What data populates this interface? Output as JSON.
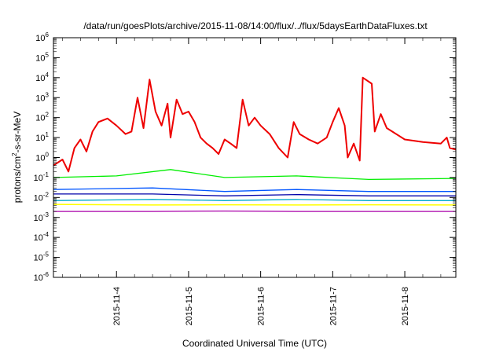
{
  "chart_data": {
    "type": "line",
    "title": "/data/run/goesPlots/archive/2015-11-08/14:00/flux/../flux/5daysEarthDataFluxes.txt",
    "xlabel": "Coordinated Universal Time (UTC)",
    "ylabel": {
      "pre": "protons/cm",
      "sup": "2",
      "post": "-s-sr-MeV"
    },
    "y_scale": "log",
    "ylim": [
      1e-06,
      1000000.0
    ],
    "y_ticks": [
      {
        "value": 1e-06,
        "base": "10",
        "exp": "-6"
      },
      {
        "value": 1e-05,
        "base": "10",
        "exp": "-5"
      },
      {
        "value": 0.0001,
        "base": "10",
        "exp": "-4"
      },
      {
        "value": 0.001,
        "base": "10",
        "exp": "-3"
      },
      {
        "value": 0.01,
        "base": "10",
        "exp": "-2"
      },
      {
        "value": 0.1,
        "base": "10",
        "exp": "-1"
      },
      {
        "value": 1,
        "base": "10",
        "exp": "0"
      },
      {
        "value": 10,
        "base": "10",
        "exp": "1"
      },
      {
        "value": 100,
        "base": "10",
        "exp": "2"
      },
      {
        "value": 1000,
        "base": "10",
        "exp": "3"
      },
      {
        "value": 10000,
        "base": "10",
        "exp": "4"
      },
      {
        "value": 100000,
        "base": "10",
        "exp": "5"
      },
      {
        "value": 1000000,
        "base": "10",
        "exp": "6"
      }
    ],
    "xlim": [
      "2015-11-03T03:00",
      "2015-11-08T17:00"
    ],
    "x_ticks": [
      "2015-11-4",
      "2015-11-5",
      "2015-11-6",
      "2015-11-7",
      "2015-11-8"
    ],
    "x_tick_dates": [
      "2015-11-04",
      "2015-11-05",
      "2015-11-06",
      "2015-11-07",
      "2015-11-08"
    ],
    "grid": false,
    "series": [
      {
        "color": "#ee0000",
        "width": 2,
        "points": [
          [
            "2015-11-03T03:00",
            0.4
          ],
          [
            "2015-11-03T06:00",
            0.8
          ],
          [
            "2015-11-03T08:00",
            0.2
          ],
          [
            "2015-11-03T10:00",
            3
          ],
          [
            "2015-11-03T12:00",
            8
          ],
          [
            "2015-11-03T14:00",
            2
          ],
          [
            "2015-11-03T16:00",
            20
          ],
          [
            "2015-11-03T18:00",
            60
          ],
          [
            "2015-11-03T21:00",
            90
          ],
          [
            "2015-11-04T00:00",
            40
          ],
          [
            "2015-11-04T03:00",
            15
          ],
          [
            "2015-11-04T05:00",
            20
          ],
          [
            "2015-11-04T07:00",
            1000
          ],
          [
            "2015-11-04T09:00",
            30
          ],
          [
            "2015-11-04T11:00",
            8000
          ],
          [
            "2015-11-04T13:00",
            200
          ],
          [
            "2015-11-04T15:00",
            40
          ],
          [
            "2015-11-04T17:00",
            500
          ],
          [
            "2015-11-04T18:00",
            10
          ],
          [
            "2015-11-04T20:00",
            800
          ],
          [
            "2015-11-04T22:00",
            150
          ],
          [
            "2015-11-05T00:00",
            200
          ],
          [
            "2015-11-05T02:00",
            60
          ],
          [
            "2015-11-05T04:00",
            10
          ],
          [
            "2015-11-05T06:00",
            5
          ],
          [
            "2015-11-05T08:00",
            3
          ],
          [
            "2015-11-05T10:00",
            1.5
          ],
          [
            "2015-11-05T12:00",
            8
          ],
          [
            "2015-11-05T14:00",
            5
          ],
          [
            "2015-11-05T16:00",
            3
          ],
          [
            "2015-11-05T18:00",
            800
          ],
          [
            "2015-11-05T20:00",
            40
          ],
          [
            "2015-11-05T22:00",
            100
          ],
          [
            "2015-11-06T00:00",
            40
          ],
          [
            "2015-11-06T03:00",
            15
          ],
          [
            "2015-11-06T06:00",
            3
          ],
          [
            "2015-11-06T09:00",
            1
          ],
          [
            "2015-11-06T11:00",
            60
          ],
          [
            "2015-11-06T13:00",
            15
          ],
          [
            "2015-11-06T16:00",
            8
          ],
          [
            "2015-11-06T19:00",
            5
          ],
          [
            "2015-11-06T22:00",
            10
          ],
          [
            "2015-11-07T00:00",
            60
          ],
          [
            "2015-11-07T02:00",
            300
          ],
          [
            "2015-11-07T04:00",
            40
          ],
          [
            "2015-11-07T05:00",
            1
          ],
          [
            "2015-11-07T07:00",
            5
          ],
          [
            "2015-11-07T09:00",
            0.7
          ],
          [
            "2015-11-07T10:00",
            10000
          ],
          [
            "2015-11-07T13:00",
            5000
          ],
          [
            "2015-11-07T14:00",
            20
          ],
          [
            "2015-11-07T16:00",
            150
          ],
          [
            "2015-11-07T18:00",
            30
          ],
          [
            "2015-11-08T00:00",
            8
          ],
          [
            "2015-11-08T06:00",
            6
          ],
          [
            "2015-11-08T12:00",
            5
          ],
          [
            "2015-11-08T14:00",
            10
          ],
          [
            "2015-11-08T15:00",
            3
          ],
          [
            "2015-11-08T17:00",
            2.5
          ]
        ]
      },
      {
        "color": "#00ee00",
        "width": 1.3,
        "points": [
          [
            "2015-11-03T03:00",
            0.1
          ],
          [
            "2015-11-04T00:00",
            0.12
          ],
          [
            "2015-11-04T18:00",
            0.25
          ],
          [
            "2015-11-05T12:00",
            0.1
          ],
          [
            "2015-11-06T12:00",
            0.12
          ],
          [
            "2015-11-07T12:00",
            0.08
          ],
          [
            "2015-11-08T17:00",
            0.09
          ]
        ]
      },
      {
        "color": "#0055ff",
        "width": 1.3,
        "points": [
          [
            "2015-11-03T03:00",
            0.025
          ],
          [
            "2015-11-04T12:00",
            0.03
          ],
          [
            "2015-11-05T12:00",
            0.02
          ],
          [
            "2015-11-06T12:00",
            0.025
          ],
          [
            "2015-11-07T12:00",
            0.02
          ],
          [
            "2015-11-08T17:00",
            0.02
          ]
        ]
      },
      {
        "color": "#0000aa",
        "width": 1.3,
        "points": [
          [
            "2015-11-03T03:00",
            0.015
          ],
          [
            "2015-11-04T12:00",
            0.015
          ],
          [
            "2015-11-05T12:00",
            0.012
          ],
          [
            "2015-11-06T12:00",
            0.014
          ],
          [
            "2015-11-07T12:00",
            0.012
          ],
          [
            "2015-11-08T17:00",
            0.012
          ]
        ]
      },
      {
        "color": "#00aacc",
        "width": 1.3,
        "points": [
          [
            "2015-11-03T03:00",
            0.007
          ],
          [
            "2015-11-04T12:00",
            0.008
          ],
          [
            "2015-11-05T12:00",
            0.007
          ],
          [
            "2015-11-06T12:00",
            0.008
          ],
          [
            "2015-11-07T12:00",
            0.007
          ],
          [
            "2015-11-08T17:00",
            0.007
          ]
        ]
      },
      {
        "color": "#ffff00",
        "width": 1.5,
        "points": [
          [
            "2015-11-03T03:00",
            0.0045
          ],
          [
            "2015-11-04T12:00",
            0.0042
          ],
          [
            "2015-11-05T12:00",
            0.0043
          ],
          [
            "2015-11-06T12:00",
            0.0042
          ],
          [
            "2015-11-07T12:00",
            0.0043
          ],
          [
            "2015-11-08T17:00",
            0.0042
          ]
        ]
      },
      {
        "color": "#aa00aa",
        "width": 1.3,
        "points": [
          [
            "2015-11-03T03:00",
            0.002
          ],
          [
            "2015-11-04T12:00",
            0.002
          ],
          [
            "2015-11-05T12:00",
            0.0021
          ],
          [
            "2015-11-06T12:00",
            0.002
          ],
          [
            "2015-11-07T12:00",
            0.002
          ],
          [
            "2015-11-08T17:00",
            0.002
          ]
        ]
      }
    ]
  }
}
